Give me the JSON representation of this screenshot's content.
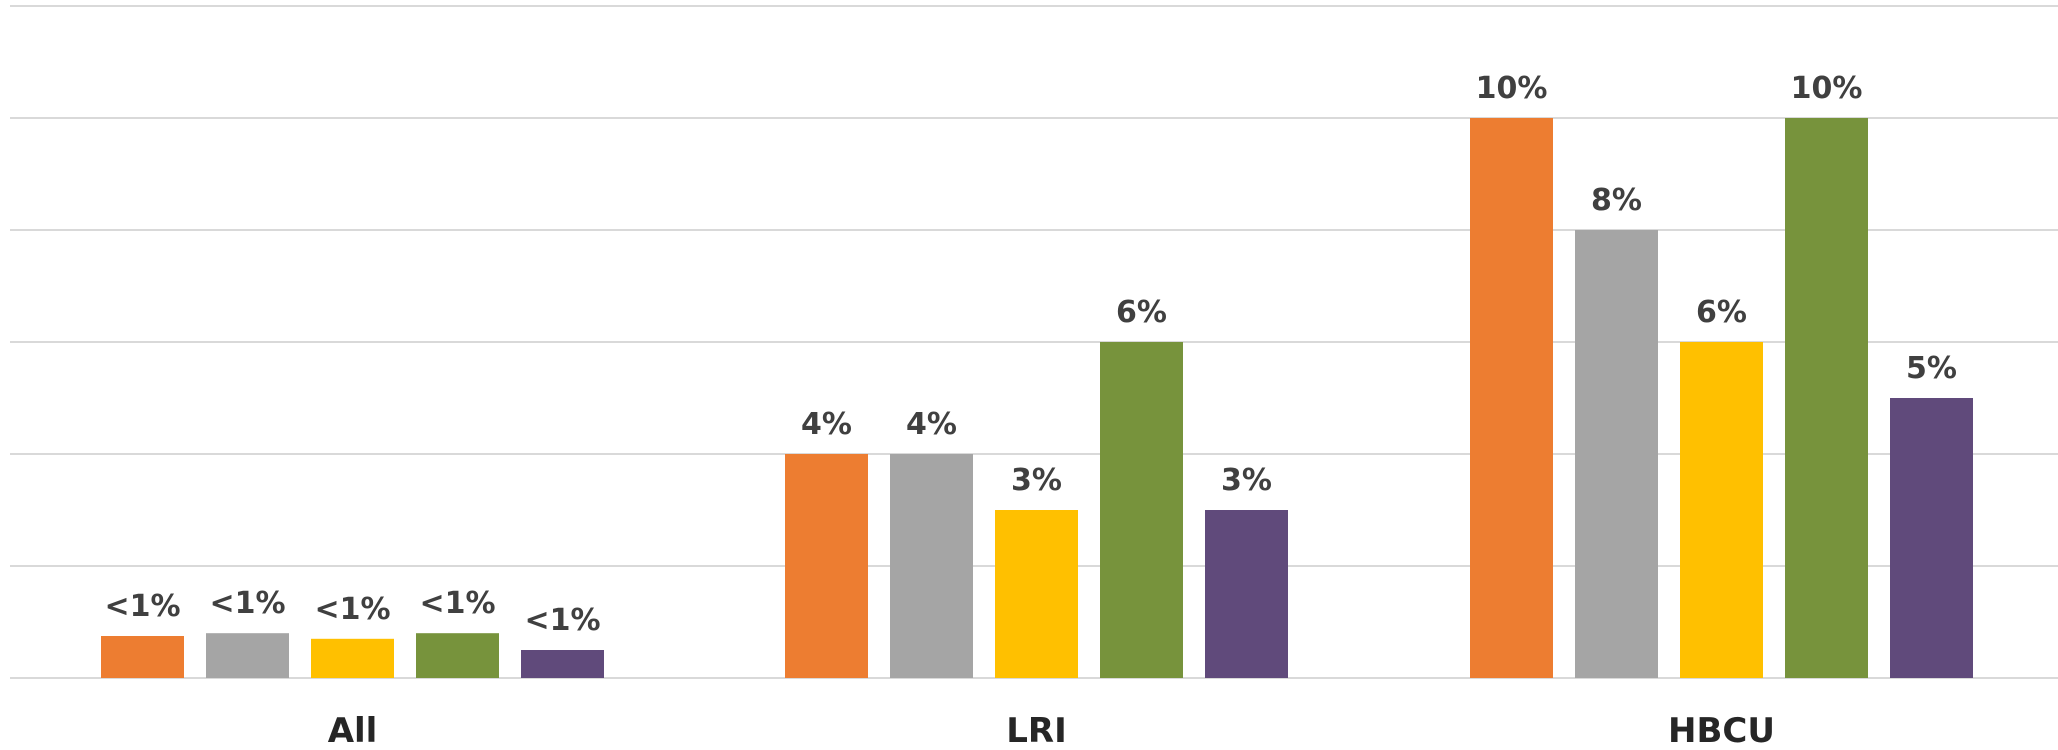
{
  "chart_data": {
    "type": "bar",
    "categories": [
      "All",
      "LRI",
      "HBCU"
    ],
    "series": [
      {
        "color": "#ED7D31",
        "values": [
          0.75,
          4,
          10
        ],
        "labels": [
          "<1%",
          "4%",
          "10%"
        ]
      },
      {
        "color": "#A5A5A5",
        "values": [
          0.8,
          4,
          8
        ],
        "labels": [
          "<1%",
          "4%",
          "8%"
        ]
      },
      {
        "color": "#FFC000",
        "values": [
          0.7,
          3,
          6
        ],
        "labels": [
          "<1%",
          "3%",
          "6%"
        ]
      },
      {
        "color": "#77933C",
        "values": [
          0.8,
          6,
          10
        ],
        "labels": [
          "<1%",
          "6%",
          "10%"
        ]
      },
      {
        "color": "#604A7B",
        "values": [
          0.5,
          3,
          5
        ],
        "labels": [
          "<1%",
          "3%",
          "5%"
        ]
      }
    ],
    "ylim": [
      0,
      12
    ],
    "grid": true
  }
}
